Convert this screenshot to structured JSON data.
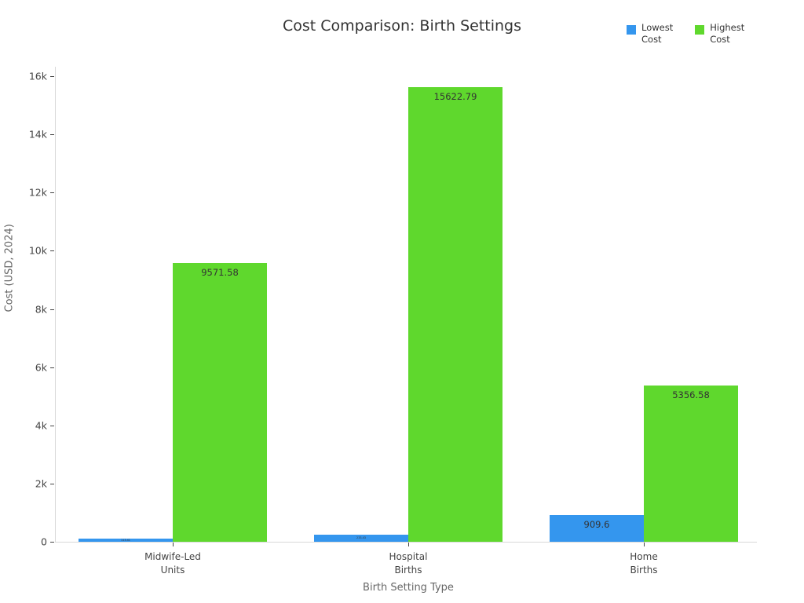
{
  "title": "Cost Comparison: Birth Settings",
  "legend": {
    "items": [
      {
        "label": "Lowest\nCost",
        "color": "#3496ee"
      },
      {
        "label": "Highest\nCost",
        "color": "#5fd82d"
      }
    ]
  },
  "chart_data": {
    "type": "bar",
    "title": "Cost Comparison: Birth Settings",
    "xlabel": "Birth Setting Type",
    "ylabel": "Cost (USD, 2024)",
    "categories": [
      "Midwife-Led\nUnits",
      "Hospital\nBirths",
      "Home\nBirths"
    ],
    "series": [
      {
        "name": "Lowest Cost",
        "color": "#3496ee",
        "values": [
          113.41,
          233.43,
          909.6
        ],
        "labels": [
          "113.41",
          "233.43",
          "909.6"
        ]
      },
      {
        "name": "Highest Cost",
        "color": "#5fd82d",
        "values": [
          9571.58,
          15622.79,
          5356.58
        ],
        "labels": [
          "9571.58",
          "15622.79",
          "5356.58"
        ]
      }
    ],
    "ylim": [
      0,
      16000
    ],
    "yticks": [
      {
        "value": 0,
        "label": "0"
      },
      {
        "value": 2000,
        "label": "2k"
      },
      {
        "value": 4000,
        "label": "4k"
      },
      {
        "value": 6000,
        "label": "6k"
      },
      {
        "value": 8000,
        "label": "8k"
      },
      {
        "value": 10000,
        "label": "10k"
      },
      {
        "value": 12000,
        "label": "12k"
      },
      {
        "value": 14000,
        "label": "14k"
      },
      {
        "value": 16000,
        "label": "16k"
      }
    ],
    "grid": false,
    "legend_position": "top-right",
    "label_text_color": "#333333"
  }
}
